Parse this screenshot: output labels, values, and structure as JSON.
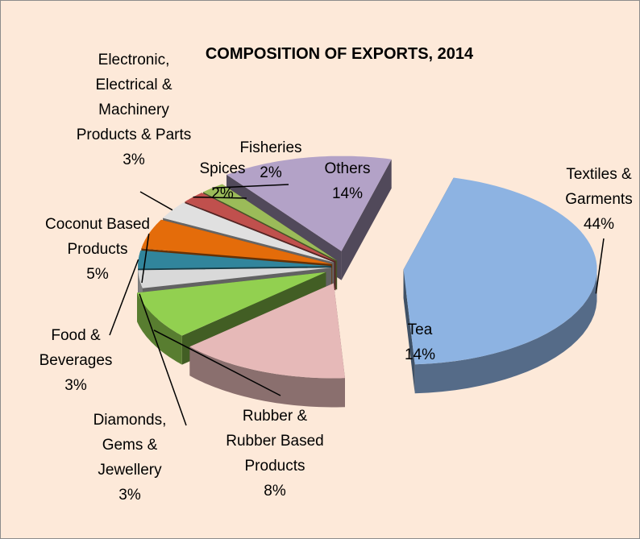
{
  "chart_data": {
    "type": "pie",
    "title": "COMPOSITION OF EXPORTS, 2014",
    "categories": [
      "Textiles & Garments",
      "Tea",
      "Rubber & Rubber Based Products",
      "Diamonds, Gems & Jewellery",
      "Food & Beverages",
      "Coconut Based Products",
      "Electronic, Electrical & Machinery Products & Parts",
      "Spices",
      "Fisheries",
      "Others"
    ],
    "values": [
      44,
      14,
      8,
      3,
      3,
      5,
      3,
      2,
      2,
      14
    ],
    "value_labels": [
      "44%",
      "14%",
      "8%",
      "3%",
      "3%",
      "5%",
      "3%",
      "2%",
      "2%",
      "14%"
    ],
    "colors": [
      "#8db3e2",
      "#e6b9b8",
      "#92d050",
      "#d9d9d9",
      "#31859c",
      "#e46c0a",
      "#e0e0e0",
      "#c0504d",
      "#9bbb59",
      "#b3a2c7"
    ]
  }
}
